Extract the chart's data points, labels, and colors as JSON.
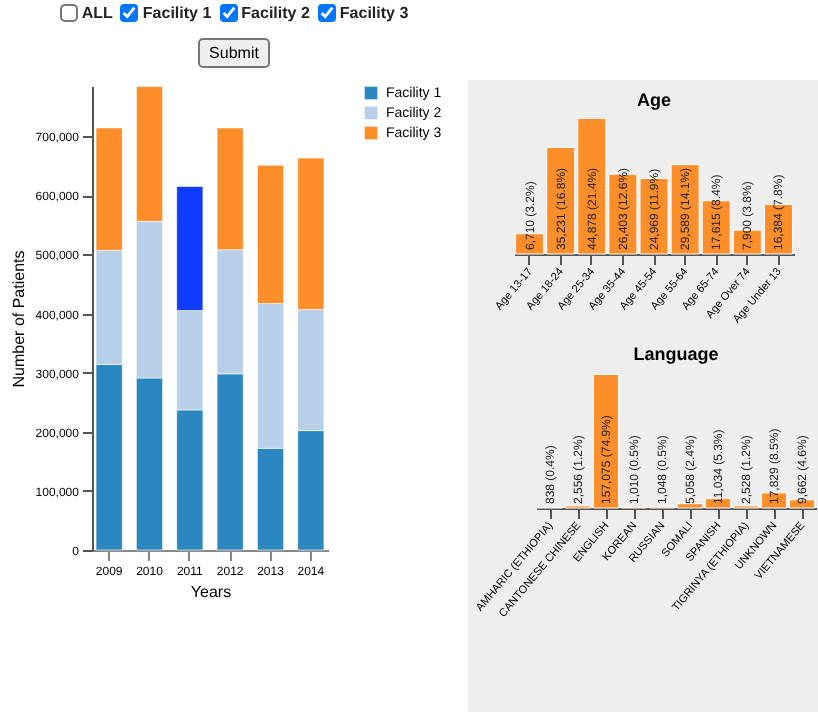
{
  "chart_data": [
    {
      "type": "other",
      "annotations": [
        "ALL",
        "Facility 1",
        "Facility 2",
        "Facility 3",
        "Submit"
      ]
    },
    {
      "type": "bar",
      "stacked": true,
      "xlabel": "Years",
      "ylabel": "Number of Patients",
      "categories": [
        "2009",
        "2010",
        "2011",
        "2012",
        "2013",
        "2014"
      ],
      "ylim": [
        0,
        785000
      ],
      "yticks": [
        0,
        {
          "value": 100000,
          "label": "100,000"
        },
        {
          "value": 200000,
          "label": "200,000"
        },
        {
          "value": 300000,
          "label": "300,000"
        },
        {
          "value": 400000,
          "label": "400,000"
        },
        {
          "value": 500000,
          "label": "500,000"
        },
        {
          "value": 600000,
          "label": "600,000"
        },
        {
          "value": 700000,
          "label": "700,000"
        }
      ],
      "legend": "right",
      "series": [
        {
          "name": "Facility 1",
          "color": "#2b87c0",
          "values": [
            314000,
            291000,
            237000,
            298000,
            172000,
            202000
          ]
        },
        {
          "name": "Facility 2",
          "color": "#b8cfe9",
          "values": [
            193000,
            265000,
            168000,
            210000,
            245000,
            205000
          ]
        },
        {
          "name": "Facility 3",
          "color": "#fd8e2a",
          "colors": [
            "#fd8e2a",
            "#fd8e2a",
            "#0f3cfa",
            "#fd8e2a",
            "#fd8e2a",
            "#fd8e2a"
          ],
          "values": [
            207000,
            228000,
            210000,
            206000,
            234000,
            256000
          ]
        }
      ]
    },
    {
      "type": "bar",
      "title": "Age",
      "color": "#fd8e2a",
      "categories": [
        "Age 13-17",
        "Age 18-24",
        "Age 25-34",
        "Age 35-44",
        "Age 45-54",
        "Age 55-64",
        "Age 65-74",
        "Age Over 74",
        "Age Under 13"
      ],
      "values": [
        6710,
        35231,
        44878,
        26403,
        24969,
        29589,
        17615,
        7900,
        16384
      ],
      "value_labels": [
        "6,710 (3.2%)",
        "35,231 (16.8%)",
        "44,878 (21.4%)",
        "26,403 (12.6%)",
        "24,969 (11.9%)",
        "29,589 (14.1%)",
        "17,615 (8.4%)",
        "7,900 (3.8%)",
        "16,384 (7.8%)"
      ]
    },
    {
      "type": "bar",
      "title": "Language",
      "color": "#fd8e2a",
      "categories": [
        "AMHARIC (ETHIOPIA)",
        "CANTONESE CHINESE",
        "ENGLISH",
        "KOREAN",
        "RUSSIAN",
        "SOMALI",
        "SPANISH",
        "TIGRINYA (ETHIOPIA)",
        "UNKNOWN",
        "VIETNAMESE"
      ],
      "values": [
        838,
        2556,
        157075,
        1010,
        1048,
        5058,
        11034,
        2528,
        17829,
        9662
      ],
      "value_labels": [
        "838 (0.4%)",
        "2,556 (1.2%)",
        "157,075 (74.9%)",
        "1,010 (0.5%)",
        "1,048 (0.5%)",
        "5,058 (2.4%)",
        "11,034 (5.3%)",
        "2,528 (1.2%)",
        "17,829 (8.5%)",
        "9,662 (4.6%)"
      ]
    }
  ]
}
